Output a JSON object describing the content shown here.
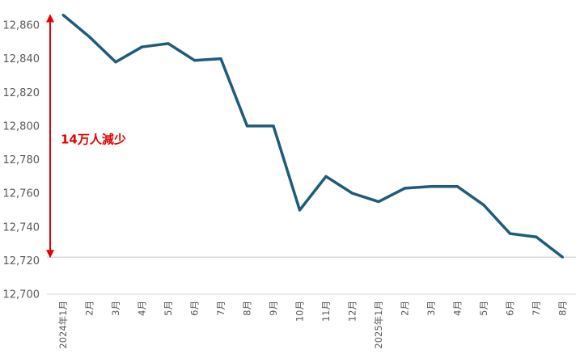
{
  "chart_data": {
    "type": "line",
    "title": "",
    "xlabel": "",
    "ylabel": "",
    "ylim": [
      12700,
      12860
    ],
    "yticks": [
      12700,
      12720,
      12740,
      12760,
      12780,
      12800,
      12820,
      12840,
      12860
    ],
    "ytick_labels": [
      "12,700",
      "12,720",
      "12,740",
      "12,760",
      "12,780",
      "12,800",
      "12,820",
      "12,840",
      "12,860"
    ],
    "categories": [
      "2024年1月",
      "2月",
      "3月",
      "4月",
      "5月",
      "6月",
      "7月",
      "8月",
      "9月",
      "10月",
      "11月",
      "12月",
      "2025年1月",
      "2月",
      "3月",
      "4月",
      "5月",
      "6月",
      "7月",
      "8月"
    ],
    "series": [
      {
        "values": [
          12866,
          12853,
          12838,
          12847,
          12849,
          12839,
          12840,
          12800,
          12800,
          12750,
          12770,
          12760,
          12755,
          12763,
          12764,
          12764,
          12753,
          12736,
          12734,
          12722
        ],
        "color": "#1f5b7a"
      }
    ],
    "grid": false,
    "annotation": {
      "text": "14万人減少",
      "color": "#e00000",
      "arrow_from": 12866,
      "arrow_to": 12722,
      "reference_line_at": 12722
    }
  }
}
